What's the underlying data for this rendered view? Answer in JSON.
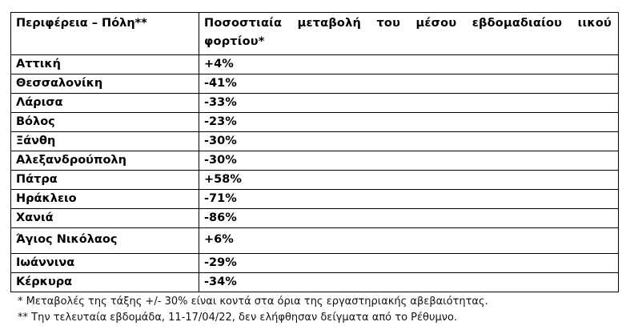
{
  "table": {
    "headers": {
      "region": "Περιφέρεια – Πόλη**",
      "change": "Ποσοστιαία μεταβολή του μέσου εβδομαδιαίου ιικού φορτίου*"
    },
    "rows": [
      {
        "city": "Αττική",
        "change": "+4%"
      },
      {
        "city": "Θεσσαλονίκη",
        "change": "-41%"
      },
      {
        "city": "Λάρισα",
        "change": "-33%"
      },
      {
        "city": "Βόλος",
        "change": "-23%"
      },
      {
        "city": "Ξάνθη",
        "change": "-30%"
      },
      {
        "city": "Αλεξανδρούπολη",
        "change": "-30%"
      },
      {
        "city": "Πάτρα",
        "change": "+58%"
      },
      {
        "city": "Ηράκλειο",
        "change": "-71%"
      },
      {
        "city": "Χανιά",
        "change": "-86%"
      },
      {
        "city": "Άγιος Νικόλαος",
        "change": "+6%"
      },
      {
        "city": "Ιωάννινα",
        "change": "-29%"
      },
      {
        "city": "Κέρκυρα",
        "change": "-34%"
      }
    ]
  },
  "footnotes": [
    "* Μεταβολές της τάξης +/- 30% είναι κοντά στα όρια της εργαστηριακής αβεβαιότητας.",
    "** Την τελευταία εβδομάδα, 11-17/04/22, δεν ελήφθησαν δείγματα από το Ρέθυμνο."
  ]
}
